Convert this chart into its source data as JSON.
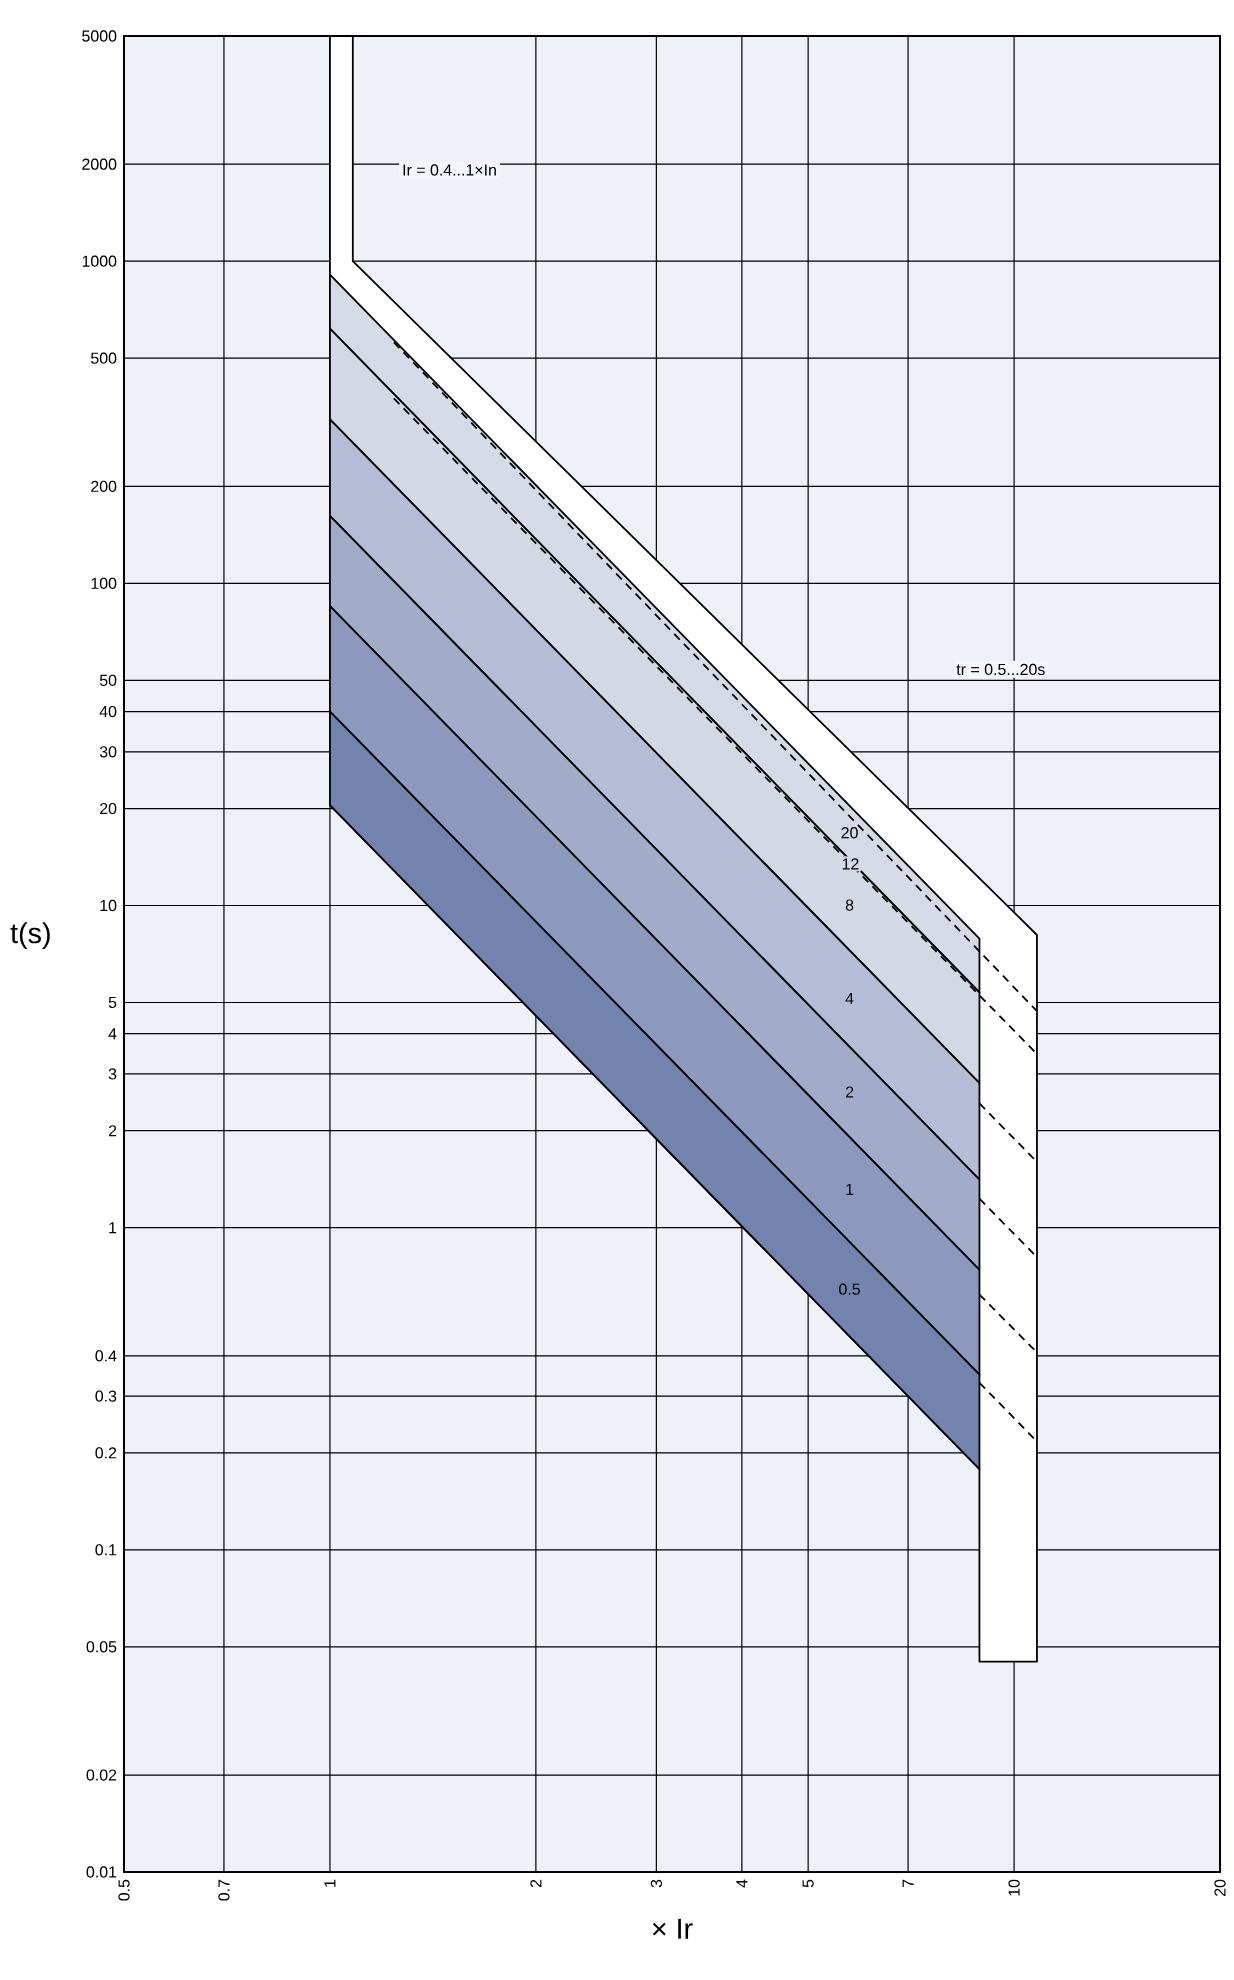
{
  "chart_data": {
    "type": "area",
    "xlabel": "× Ir",
    "ylabel": "t(s)",
    "log": "xy",
    "grid": true,
    "xlim": [
      0.5,
      20
    ],
    "xticks": [
      0.5,
      0.7,
      1,
      2,
      3,
      4,
      5,
      7,
      10,
      20
    ],
    "ylim": [
      0.01,
      5000
    ],
    "yticks": [
      0.01,
      0.02,
      0.05,
      0.1,
      0.2,
      0.3,
      0.4,
      1,
      2,
      3,
      4,
      5,
      10,
      20,
      30,
      40,
      50,
      100,
      200,
      500,
      1000,
      2000,
      5000
    ],
    "series": [
      {
        "color": "#ffffff",
        "x": [
          1,
          1.08,
          1.08,
          10.8,
          10.8,
          8.9,
          8.9,
          1
        ],
        "values": [
          5000,
          5000,
          1000,
          8.1,
          0.045,
          0.045,
          0.178,
          20.5
        ]
      },
      {
        "name": "20",
        "color": "#d5dae6",
        "x": [
          1,
          8.9,
          8.9,
          1
        ],
        "values": [
          908,
          7.9,
          5.37,
          617
        ]
      },
      {
        "name": "8",
        "color": "#d3d8e5",
        "x": [
          1,
          8.9,
          8.9,
          1
        ],
        "values": [
          617,
          5.37,
          2.81,
          323
        ]
      },
      {
        "name": "4",
        "color": "#b5bcd6",
        "x": [
          1,
          8.9,
          8.9,
          1
        ],
        "values": [
          323,
          2.81,
          1.41,
          162
        ]
      },
      {
        "name": "2",
        "color": "#a2abc8",
        "x": [
          1,
          8.9,
          8.9,
          1
        ],
        "values": [
          162,
          1.41,
          0.74,
          85
        ]
      },
      {
        "name": "1",
        "color": "#8c99bc",
        "x": [
          1,
          8.9,
          8.9,
          1
        ],
        "values": [
          85,
          0.74,
          0.35,
          40
        ]
      },
      {
        "name": "0.5",
        "color": "#7283ad",
        "x": [
          1,
          8.9,
          8.9,
          1
        ],
        "values": [
          40,
          0.35,
          0.178,
          20.5
        ]
      },
      {
        "type": "line",
        "line_style": "dashed",
        "color": "#000000",
        "x": [
          1.24,
          10.8
        ],
        "values": [
          560,
          4.7
        ]
      },
      {
        "name": "12",
        "type": "line",
        "line_style": "dashed",
        "color": "#000000",
        "x": [
          1.24,
          10.8
        ],
        "values": [
          375,
          3.46
        ]
      },
      {
        "type": "line",
        "line_style": "dashed",
        "color": "#000000",
        "x": [
          8.9,
          10.8
        ],
        "values": [
          2.43,
          1.6
        ]
      },
      {
        "type": "line",
        "line_style": "dashed",
        "color": "#000000",
        "x": [
          8.9,
          10.8
        ],
        "values": [
          1.23,
          0.81
        ]
      },
      {
        "type": "line",
        "line_style": "dashed",
        "color": "#000000",
        "x": [
          8.9,
          10.8
        ],
        "values": [
          0.62,
          0.41
        ]
      },
      {
        "type": "line",
        "line_style": "dashed",
        "color": "#000000",
        "x": [
          8.9,
          10.8
        ],
        "values": [
          0.33,
          0.217
        ]
      }
    ],
    "annotations": [
      "Ir = 0.4...1×In",
      "tr = 0.5...20s"
    ]
  }
}
